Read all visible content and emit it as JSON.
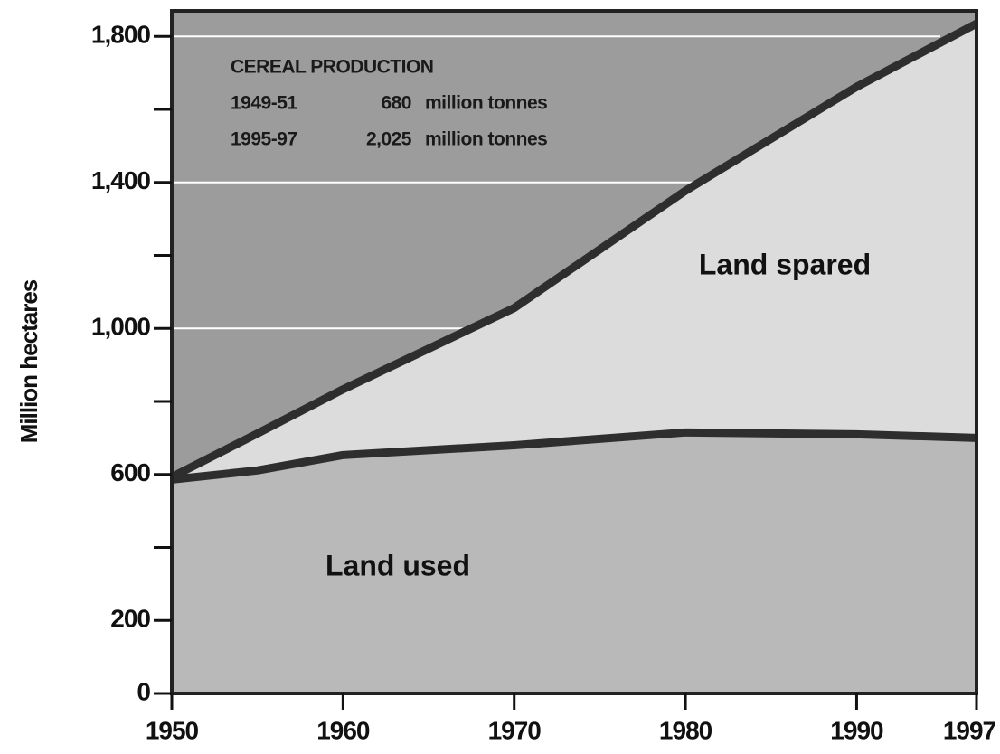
{
  "chart_data": {
    "type": "stacked-area",
    "y_label": "Million hectares",
    "x": [
      1950,
      1955,
      1960,
      1970,
      1980,
      1990,
      1997
    ],
    "series": [
      {
        "name": "Land used",
        "color": "#b9b9b9",
        "values": [
          586,
          611,
          653,
          680,
          715,
          710,
          700
        ]
      },
      {
        "name": "Land spared",
        "color": "#dcdcdc",
        "values": [
          7,
          101,
          180,
          376,
          662,
          952,
          1135
        ]
      }
    ],
    "line_color": "#2e2e2e",
    "background_color": "#9c9c9c",
    "grid_color": "#ffffff",
    "grid": true,
    "xlim": [
      1950,
      1997
    ],
    "xticks": [
      1950,
      1960,
      1970,
      1980,
      1990,
      1997
    ],
    "ylim": [
      0,
      1870
    ],
    "yticks": [
      0,
      200,
      600,
      {
        "value": 1000,
        "label": "1,000"
      },
      {
        "value": 1400,
        "label": "1,400"
      },
      {
        "value": 1800,
        "label": "1,800"
      }
    ],
    "yminorticks": [
      400,
      800,
      1200,
      1600
    ],
    "annotation": {
      "title": "CEREAL PRODUCTION",
      "rows": [
        [
          "1949-51",
          "680",
          "million tonnes"
        ],
        [
          "1995-97",
          "2,025",
          "million tonnes"
        ]
      ]
    }
  }
}
